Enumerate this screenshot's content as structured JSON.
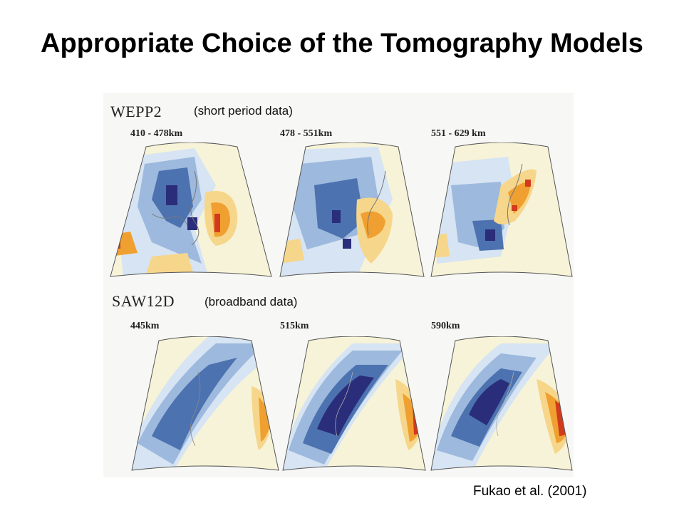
{
  "slide": {
    "title": "Appropriate Choice of the Tomography Models",
    "citation": "Fukao et al. (2001)"
  },
  "models": [
    {
      "name": "WEPP2",
      "note": "(short period data)",
      "panels": [
        {
          "depth": "410 - 478km",
          "anomaly_pattern": "blocky, fast anomalies along slab, slow anomaly east of Japan"
        },
        {
          "depth": "478 - 551km",
          "anomaly_pattern": "fast anomaly beneath Japan Sea, slow patch to the east"
        },
        {
          "depth": "551 - 629 km",
          "anomaly_pattern": "fast anomaly in south, slow anomalies along Japan arc"
        }
      ]
    },
    {
      "name": "SAW12D",
      "note": "(broadband data)",
      "panels": [
        {
          "depth": "445km",
          "anomaly_pattern": "smooth fast anomaly, slow anomaly at eastern edge"
        },
        {
          "depth": "515km",
          "anomaly_pattern": "strong smooth fast anomaly, red slow anomaly at eastern edge"
        },
        {
          "depth": "590km",
          "anomaly_pattern": "strong smooth fast anomaly, red slow anomaly at eastern edge"
        }
      ]
    }
  ],
  "colors": {
    "fast_dark": "#2a2d7a",
    "fast_mid": "#4d72b0",
    "fast_light": "#9db9dd",
    "fast_pale": "#d6e4f3",
    "neutral": "#f7f3d8",
    "slow_light": "#f6d68a",
    "slow_mid": "#f0a030",
    "slow_dark": "#d23a1e"
  }
}
